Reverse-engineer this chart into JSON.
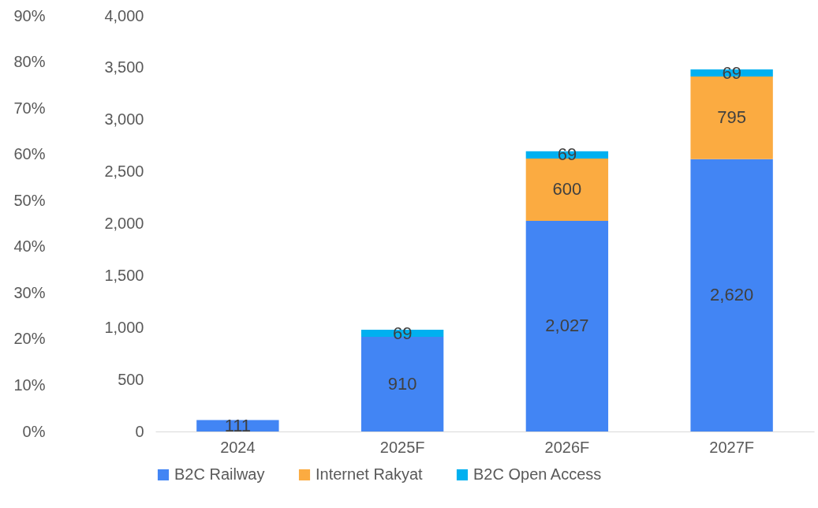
{
  "chart_data": {
    "type": "bar",
    "stacked": true,
    "legend": "bottom",
    "grid": false,
    "categories": [
      "2024",
      "2025F",
      "2026F",
      "2027F"
    ],
    "series": [
      {
        "name": "B2C Railway",
        "color": "#4285f4",
        "values": [
          111,
          910,
          2027,
          2620
        ],
        "value_labels": [
          "111",
          "910",
          "2,027",
          "2,620"
        ]
      },
      {
        "name": "Internet Rakyat",
        "color": "#fbab41",
        "values": [
          null,
          null,
          600,
          795
        ],
        "value_labels": [
          null,
          null,
          "600",
          "795"
        ]
      },
      {
        "name": "B2C Open Access",
        "color": "#00b0f0",
        "values": [
          null,
          69,
          69,
          69
        ],
        "value_labels": [
          null,
          "69",
          "69",
          "69"
        ]
      }
    ],
    "ylim": [
      0,
      4000
    ],
    "yticks": [
      {
        "value": 0,
        "label": "0"
      },
      {
        "value": 500,
        "label": "500"
      },
      {
        "value": 1000,
        "label": "1,000"
      },
      {
        "value": 1500,
        "label": "1,500"
      },
      {
        "value": 2000,
        "label": "2,000"
      },
      {
        "value": 2500,
        "label": "2,500"
      },
      {
        "value": 3000,
        "label": "3,000"
      },
      {
        "value": 3500,
        "label": "3,500"
      },
      {
        "value": 4000,
        "label": "4,000"
      }
    ],
    "y2lim": [
      0,
      90
    ],
    "y2ticks": [
      {
        "value": 0,
        "label": "0%"
      },
      {
        "value": 10,
        "label": "10%"
      },
      {
        "value": 20,
        "label": "20%"
      },
      {
        "value": 30,
        "label": "30%"
      },
      {
        "value": 40,
        "label": "40%"
      },
      {
        "value": 50,
        "label": "50%"
      },
      {
        "value": 60,
        "label": "60%"
      },
      {
        "value": 70,
        "label": "70%"
      },
      {
        "value": 80,
        "label": "80%"
      },
      {
        "value": 90,
        "label": "90%"
      }
    ]
  }
}
